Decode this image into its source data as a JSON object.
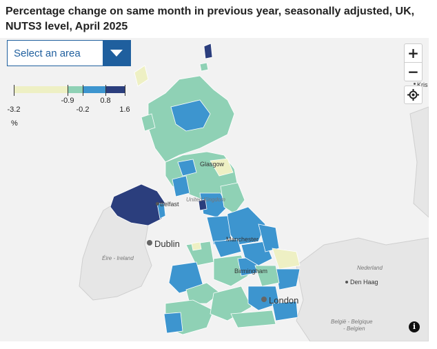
{
  "title": "Percentage change on same month in previous year, seasonally adjusted, UK, NUTS3 level, April 2025",
  "dropdown": {
    "label": "Select an area"
  },
  "legend": {
    "ticks": [
      "-3.2",
      "-0.9",
      "-0.2",
      "0.8",
      "1.6"
    ],
    "unit": "%",
    "colors": [
      "#eef0c4",
      "#8fd1b5",
      "#3d95cf",
      "#2b3e7d"
    ]
  },
  "controls": {
    "zoom_in": "+",
    "zoom_out": "−",
    "info": "i"
  },
  "map_labels": {
    "glasgow": "Glasgow",
    "belfast": "Belfast",
    "united_kingdom": "United Kingdom",
    "dublin": "Dublin",
    "eire": "Éire - Ireland",
    "manchester": "Manchester",
    "birmingham": "Birmingham",
    "london": "London",
    "nederland": "Nederland",
    "den_haag": "Den Haag",
    "belgie": "België - Belgique",
    "belgien": "- Belgien",
    "kris": "Kris"
  },
  "colors": {
    "low": "#eef0c4",
    "mid_low": "#8fd1b5",
    "mid_high": "#3d95cf",
    "high": "#2b3e7d",
    "land_other": "#e6e6e6",
    "sea": "#f2f2f2"
  }
}
